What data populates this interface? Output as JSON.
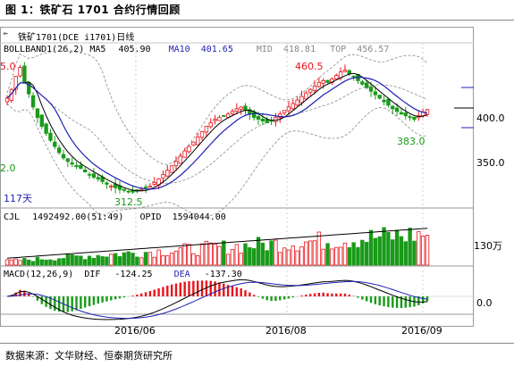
{
  "figure_title": "图 1：铁矿石 1701 合约行情回顾",
  "source": "数据来源：文华财经、恒泰期货研究所",
  "header": {
    "symbol_label": "铁矿1701(DCE i1701)日线",
    "icon": "collapse-arrow-icon"
  },
  "colors": {
    "up": "#e8141b",
    "down": "#1a9a1a",
    "ma5": "#000000",
    "ma10": "#1f1fb4",
    "band": "#888888",
    "accent_blue": "#0000c8"
  },
  "price_panel": {
    "indicator_label": "BOLLBAND1(26,2)",
    "ma5_label": "MA5",
    "ma5_value": "405.90",
    "ma10_label": "MA10",
    "ma10_value": "401.65",
    "mid_label": "MID",
    "mid_value": "418.81",
    "top_label": "TOP",
    "top_value": "456.57",
    "y_ticks": [
      "400.0",
      "350.0"
    ],
    "annotations": {
      "left_partial": "5.0",
      "low_left": "2.0",
      "bars_count": "117天",
      "low_mark": "312.5",
      "high_mark": "460.5",
      "recent_low": "383.0"
    }
  },
  "volume_panel": {
    "cjl_label": "CJL",
    "cjl_value": "1492492.00(51:49)",
    "opid_label": "OPID",
    "opid_value": "1594044.00",
    "y_tick": "130万"
  },
  "macd_panel": {
    "label": "MACD(12,26,9)",
    "dif_label": "DIF",
    "dif_value": "-124.25",
    "dea_label": "DEA",
    "dea_value": "-137.30",
    "y_tick": "0.0"
  },
  "x_ticks": [
    "2016/06",
    "2016/08",
    "2016/09"
  ],
  "chart_data": {
    "type": "line",
    "title": "铁矿1701(DCE i1701)日线",
    "x_ticks": [
      "2016/06",
      "2016/08",
      "2016/09"
    ],
    "closes": [
      420,
      430,
      445,
      455,
      438,
      425,
      410,
      398,
      388,
      380,
      372,
      365,
      358,
      352,
      348,
      345,
      342,
      340,
      336,
      333,
      330,
      328,
      325,
      322,
      320,
      318,
      316,
      315,
      314,
      313,
      314,
      316,
      318,
      320,
      324,
      328,
      333,
      338,
      343,
      348,
      354,
      360,
      365,
      370,
      376,
      382,
      388,
      392,
      396,
      398,
      400,
      402,
      405,
      408,
      410,
      406,
      402,
      398,
      396,
      394,
      392,
      394,
      398,
      402,
      406,
      410,
      414,
      418,
      422,
      426,
      430,
      434,
      438,
      440,
      438,
      442,
      446,
      450,
      452,
      448,
      445,
      440,
      436,
      432,
      428,
      424,
      420,
      416,
      412,
      408,
      405,
      402,
      400,
      398,
      396,
      400,
      404,
      407
    ],
    "ylim": [
      300,
      475
    ],
    "y_ticks": [
      350,
      400
    ],
    "volume_ylim": [
      0,
      2000000
    ]
  }
}
